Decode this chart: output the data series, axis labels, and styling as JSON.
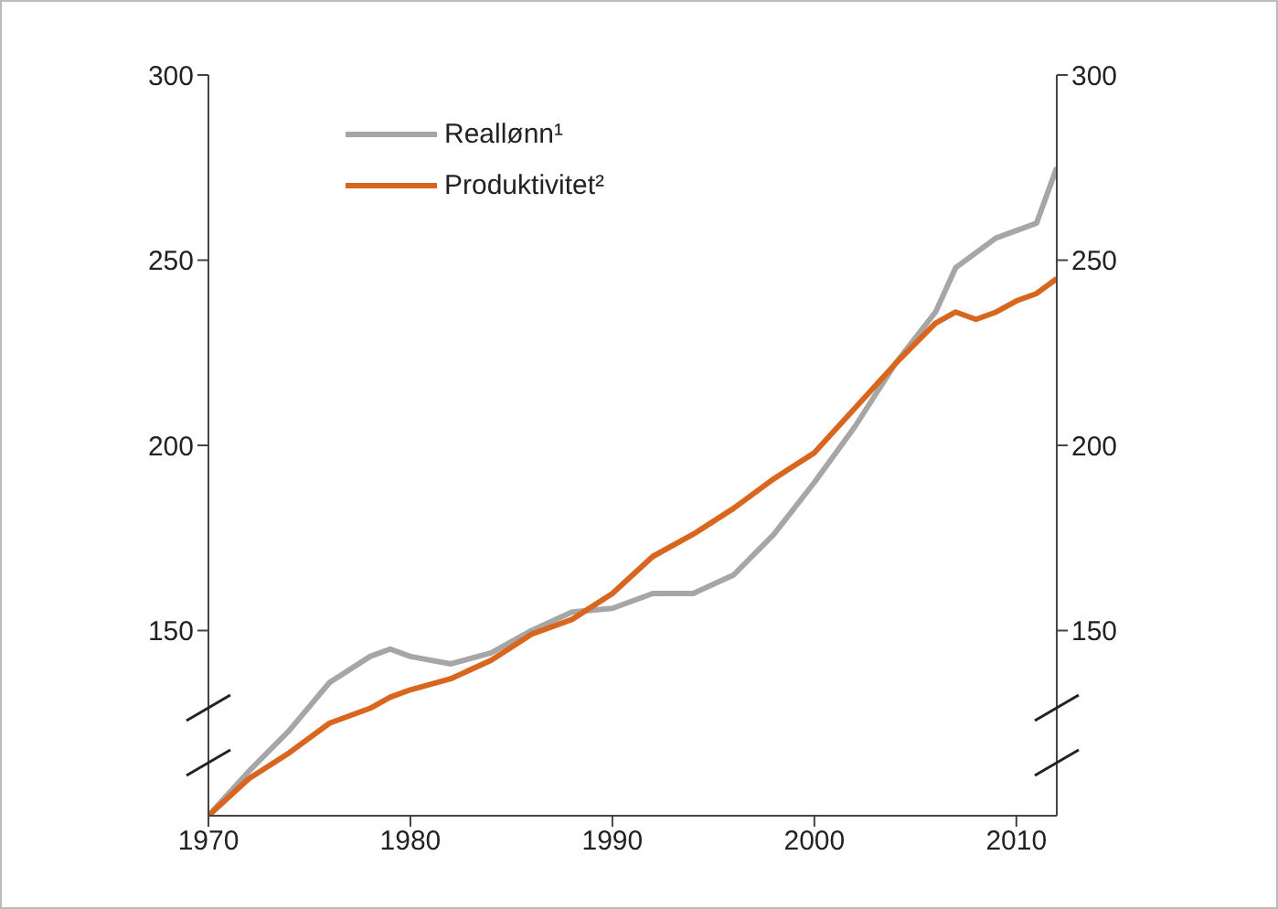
{
  "chart_data": {
    "type": "line",
    "x": [
      1970,
      1972,
      1974,
      1976,
      1978,
      1979,
      1980,
      1982,
      1984,
      1986,
      1988,
      1990,
      1992,
      1994,
      1996,
      1998,
      2000,
      2002,
      2004,
      2006,
      2007,
      2008,
      2009,
      2010,
      2011,
      2012
    ],
    "series": [
      {
        "name": "Reallønn¹",
        "color": "#a6a6a6",
        "values": [
          100,
          112,
          123,
          136,
          143,
          145,
          143,
          141,
          144,
          150,
          155,
          156,
          160,
          160,
          165,
          176,
          190,
          205,
          222,
          236,
          248,
          252,
          256,
          258,
          260,
          275
        ]
      },
      {
        "name": "Produktivitet²",
        "color": "#d9661f",
        "values": [
          100,
          110,
          117,
          125,
          129,
          132,
          134,
          137,
          142,
          149,
          153,
          160,
          170,
          176,
          183,
          191,
          198,
          210,
          222,
          233,
          236,
          234,
          236,
          239,
          241,
          245
        ]
      }
    ],
    "xlim": [
      1970,
      2012
    ],
    "xticks": [
      1970,
      1980,
      1990,
      2000,
      2010
    ],
    "ylim": [
      100,
      300
    ],
    "yticks": [
      150,
      200,
      250,
      300
    ],
    "y2lim": [
      100,
      300
    ],
    "y2ticks": [
      150,
      200,
      250,
      300
    ],
    "legend": "top left",
    "grid": false,
    "marker": "none",
    "line_style": "solid"
  }
}
